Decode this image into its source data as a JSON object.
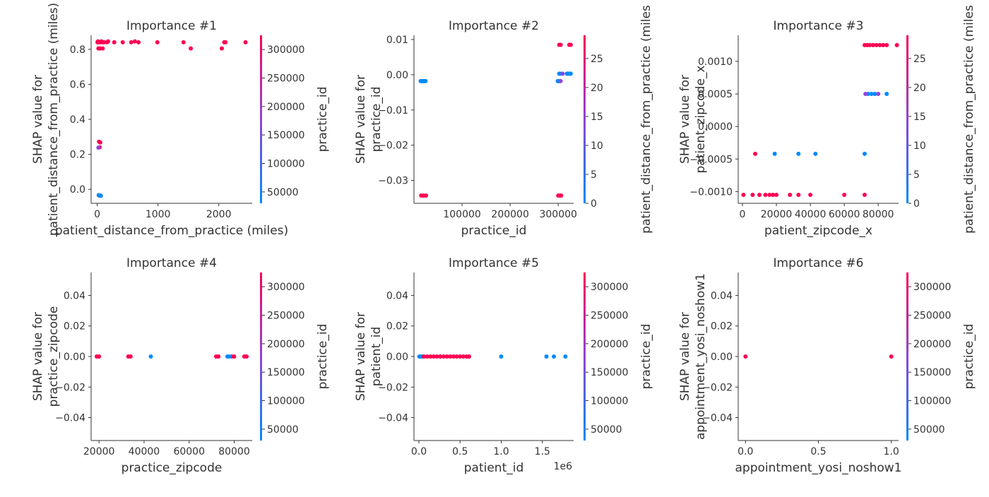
{
  "colors": {
    "low": "#008bfb",
    "mid": "#9145d7",
    "high": "#ff0052",
    "axis": "#333333"
  },
  "chart_data": [
    {
      "type": "scatter",
      "title": "Importance #1",
      "xlabel": "patient_distance_from_practice (miles)",
      "ylabel": [
        "SHAP value for",
        "patient_distance_from_practice (miles)"
      ],
      "xlim": [
        -100,
        2550
      ],
      "ylim": [
        -0.08,
        0.88
      ],
      "xticks": [
        0,
        1000,
        2000
      ],
      "xtick_labels": [
        "0",
        "1000",
        "2000"
      ],
      "yticks": [
        0.0,
        0.2,
        0.4,
        0.6,
        0.8
      ],
      "ytick_labels": [
        "0.0",
        "0.2",
        "0.4",
        "0.6",
        "0.8"
      ],
      "colorbar": {
        "label": "practice_id",
        "range": [
          30000,
          325000
        ],
        "ticks": [
          50000,
          100000,
          150000,
          200000,
          250000,
          300000
        ],
        "tick_labels": [
          "50000",
          "100000",
          "150000",
          "200000",
          "250000",
          "300000"
        ]
      },
      "series": [
        {
          "color": "high",
          "points": [
            [
              5,
              0.84
            ],
            [
              12,
              0.845
            ],
            [
              20,
              0.84
            ],
            [
              35,
              0.84
            ],
            [
              50,
              0.84
            ],
            [
              70,
              0.845
            ],
            [
              90,
              0.84
            ],
            [
              110,
              0.84
            ],
            [
              160,
              0.84
            ],
            [
              180,
              0.845
            ],
            [
              280,
              0.84
            ],
            [
              420,
              0.84
            ],
            [
              560,
              0.84
            ],
            [
              620,
              0.845
            ],
            [
              680,
              0.84
            ],
            [
              990,
              0.84
            ],
            [
              1420,
              0.84
            ],
            [
              2090,
              0.84
            ],
            [
              2110,
              0.84
            ],
            [
              2440,
              0.84
            ],
            [
              20,
              0.805
            ],
            [
              45,
              0.805
            ],
            [
              90,
              0.805
            ],
            [
              1540,
              0.805
            ],
            [
              2050,
              0.805
            ],
            [
              30,
              0.272
            ],
            [
              50,
              0.268
            ],
            [
              40,
              0.24
            ],
            [
              30,
              -0.035
            ],
            [
              50,
              -0.035
            ]
          ]
        },
        {
          "color": "mid",
          "points": [
            [
              20,
              0.238
            ]
          ]
        },
        {
          "color": "low",
          "points": [
            [
              25,
              -0.033
            ],
            [
              45,
              -0.035
            ],
            [
              60,
              -0.037
            ]
          ]
        }
      ]
    },
    {
      "type": "scatter",
      "title": "Importance #2",
      "xlabel": "practice_id",
      "ylabel": [
        "SHAP value for",
        "practice_id"
      ],
      "xlim": [
        0,
        332000
      ],
      "ylim": [
        -0.0365,
        0.0112
      ],
      "xticks": [
        100000,
        200000,
        300000
      ],
      "xtick_labels": [
        "100000",
        "200000",
        "300000"
      ],
      "yticks": [
        0.01,
        0.0,
        -0.01,
        -0.02,
        -0.03
      ],
      "ytick_labels": [
        "0.01",
        "0.00",
        "−0.01",
        "−0.02",
        "−0.03"
      ],
      "colorbar": {
        "label": "patient_distance_from_practice (miles",
        "range": [
          0,
          29
        ],
        "ticks": [
          0,
          5,
          10,
          15,
          20,
          25
        ],
        "tick_labels": [
          "0",
          "5",
          "10",
          "15",
          "20",
          "25"
        ]
      },
      "series": [
        {
          "color": "low",
          "points": [
            [
              14000,
              -0.0018
            ],
            [
              16000,
              -0.0018
            ],
            [
              18000,
              -0.0018
            ],
            [
              20000,
              -0.0018
            ],
            [
              22000,
              -0.0018
            ],
            [
              24000,
              -0.0018
            ],
            [
              299000,
              -0.0018
            ],
            [
              301000,
              -0.0018
            ],
            [
              303000,
              -0.0018
            ],
            [
              302000,
              0.0003
            ],
            [
              304000,
              0.0003
            ],
            [
              318000,
              0.0003
            ],
            [
              320000,
              0.0003
            ],
            [
              322000,
              0.0003
            ],
            [
              324000,
              0.0003
            ],
            [
              326000,
              0.0003
            ]
          ]
        },
        {
          "color": "mid",
          "points": [
            [
              305000,
              -0.0018
            ],
            [
              309000,
              0.0003
            ]
          ]
        },
        {
          "color": "high",
          "points": [
            [
              15000,
              -0.0343
            ],
            [
              20000,
              -0.0343
            ],
            [
              25000,
              -0.0343
            ],
            [
              300000,
              -0.0343
            ],
            [
              303000,
              -0.0343
            ],
            [
              306000,
              -0.0343
            ],
            [
              302000,
              0.0085
            ],
            [
              305000,
              0.0085
            ],
            [
              323000,
              0.0085
            ],
            [
              326000,
              0.0085
            ]
          ]
        }
      ]
    },
    {
      "type": "scatter",
      "title": "Importance #3",
      "xlabel": "patient_zipcode_x",
      "ylabel": [
        "SHAP value for",
        "patient_zipcode_x"
      ],
      "xlim": [
        -2500,
        92000
      ],
      "ylim": [
        -0.00118,
        0.0014
      ],
      "xticks": [
        0,
        20000,
        40000,
        60000,
        80000
      ],
      "xtick_labels": [
        "0",
        "20000",
        "40000",
        "60000",
        "80000"
      ],
      "yticks": [
        0.001,
        0.0005,
        0.0,
        -0.0005,
        -0.001
      ],
      "ytick_labels": [
        "0.0010",
        "0.0005",
        "0.0000",
        "−0.0005",
        "−0.0010"
      ],
      "colorbar": {
        "label": "patient_distance_from_practice (miles",
        "range": [
          0,
          29
        ],
        "ticks": [
          0,
          5,
          10,
          15,
          20,
          25
        ],
        "tick_labels": [
          "0",
          "5",
          "10",
          "15",
          "20",
          "25"
        ]
      },
      "series": [
        {
          "color": "high",
          "points": [
            [
              600,
              -0.00105
            ],
            [
              6000,
              -0.00105
            ],
            [
              10000,
              -0.00105
            ],
            [
              13500,
              -0.00105
            ],
            [
              16000,
              -0.00105
            ],
            [
              18000,
              -0.00105
            ],
            [
              20000,
              -0.00105
            ],
            [
              28000,
              -0.00105
            ],
            [
              33000,
              -0.00105
            ],
            [
              40000,
              -0.00105
            ],
            [
              60000,
              -0.00105
            ],
            [
              72000,
              -0.00105
            ],
            [
              7500,
              -0.00042
            ],
            [
              72000,
              0.00125
            ],
            [
              73500,
              0.00125
            ],
            [
              75000,
              0.00125
            ],
            [
              77000,
              0.00125
            ],
            [
              79000,
              0.00125
            ],
            [
              81000,
              0.00125
            ],
            [
              83000,
              0.00125
            ],
            [
              85000,
              0.00125
            ],
            [
              91000,
              0.00125
            ]
          ]
        },
        {
          "color": "low",
          "points": [
            [
              19000,
              -0.00042
            ],
            [
              33000,
              -0.00042
            ],
            [
              43000,
              -0.00042
            ],
            [
              72000,
              -0.00042
            ],
            [
              74000,
              0.0005
            ],
            [
              76000,
              0.0005
            ],
            [
              78000,
              0.0005
            ],
            [
              85000,
              0.0005
            ]
          ]
        },
        {
          "color": "mid",
          "points": [
            [
              72500,
              0.0005
            ],
            [
              80000,
              0.0005
            ]
          ]
        }
      ]
    },
    {
      "type": "scatter",
      "title": "Importance #4",
      "xlabel": "practice_zipcode",
      "ylabel": [
        "SHAP value for",
        "practice_zipcode"
      ],
      "xlim": [
        16500,
        88000
      ],
      "ylim": [
        -0.055,
        0.055
      ],
      "xticks": [
        20000,
        40000,
        60000,
        80000
      ],
      "xtick_labels": [
        "20000",
        "40000",
        "60000",
        "80000"
      ],
      "yticks": [
        0.04,
        0.02,
        0.0,
        -0.02,
        -0.04
      ],
      "ytick_labels": [
        "0.04",
        "0.02",
        "0.00",
        "−0.02",
        "−0.04"
      ],
      "colorbar": {
        "label": "practice_id",
        "range": [
          30000,
          325000
        ],
        "ticks": [
          50000,
          100000,
          150000,
          200000,
          250000,
          300000
        ],
        "tick_labels": [
          "50000",
          "100000",
          "150000",
          "200000",
          "250000",
          "300000"
        ]
      },
      "series": [
        {
          "color": "high",
          "points": [
            [
              19000,
              0.0
            ],
            [
              20000,
              0.0
            ],
            [
              33000,
              0.0
            ],
            [
              34000,
              0.0
            ],
            [
              72000,
              0.0
            ],
            [
              73000,
              0.0
            ],
            [
              79000,
              0.0
            ],
            [
              80000,
              0.0
            ],
            [
              84500,
              0.0
            ],
            [
              85500,
              0.0
            ]
          ]
        },
        {
          "color": "low",
          "points": [
            [
              43000,
              0.0
            ],
            [
              77000,
              0.0
            ],
            [
              78000,
              0.0
            ]
          ]
        }
      ]
    },
    {
      "type": "scatter",
      "title": "Importance #5",
      "xlabel": "patient_id",
      "x_offset_label": "1e6",
      "ylabel": [
        "SHAP value for",
        "patient_id"
      ],
      "xlim": [
        -60000,
        1880000
      ],
      "ylim": [
        -0.055,
        0.055
      ],
      "xticks": [
        0,
        500000,
        1000000,
        1500000
      ],
      "xtick_labels": [
        "0.0",
        "0.5",
        "1.0",
        "1.5"
      ],
      "yticks": [
        0.04,
        0.02,
        0.0,
        -0.02,
        -0.04
      ],
      "ytick_labels": [
        "0.04",
        "0.02",
        "0.00",
        "−0.02",
        "−0.04"
      ],
      "colorbar": {
        "label": "practice_id",
        "range": [
          30000,
          325000
        ],
        "ticks": [
          50000,
          100000,
          150000,
          200000,
          250000,
          300000
        ],
        "tick_labels": [
          "50000",
          "100000",
          "150000",
          "200000",
          "250000",
          "300000"
        ]
      },
      "series": [
        {
          "color": "low",
          "points": [
            [
              5000,
              0.0
            ],
            [
              20000,
              0.0
            ],
            [
              40000,
              0.0
            ],
            [
              1000000,
              0.0
            ],
            [
              1550000,
              0.0
            ],
            [
              1640000,
              0.0
            ],
            [
              1780000,
              0.0
            ]
          ]
        },
        {
          "color": "high",
          "points": [
            [
              60000,
              0.0
            ],
            [
              100000,
              0.0
            ],
            [
              140000,
              0.0
            ],
            [
              180000,
              0.0
            ],
            [
              220000,
              0.0
            ],
            [
              260000,
              0.0
            ],
            [
              300000,
              0.0
            ],
            [
              340000,
              0.0
            ],
            [
              380000,
              0.0
            ],
            [
              420000,
              0.0
            ],
            [
              460000,
              0.0
            ],
            [
              500000,
              0.0
            ],
            [
              540000,
              0.0
            ],
            [
              580000,
              0.0
            ],
            [
              610000,
              0.0
            ]
          ]
        }
      ]
    },
    {
      "type": "scatter",
      "title": "Importance #6",
      "xlabel": "appointment_yosi_noshow1",
      "ylabel": [
        "SHAP value for",
        "appointment_yosi_noshow1"
      ],
      "xlim": [
        -0.05,
        1.05
      ],
      "ylim": [
        -0.055,
        0.055
      ],
      "xticks": [
        0.0,
        0.5,
        1.0
      ],
      "xtick_labels": [
        "0.0",
        "0.5",
        "1.0"
      ],
      "yticks": [
        0.04,
        0.02,
        0.0,
        -0.02,
        -0.04
      ],
      "ytick_labels": [
        "0.04",
        "0.02",
        "0.00",
        "−0.02",
        "−0.04"
      ],
      "colorbar": {
        "label": "practice_id",
        "range": [
          30000,
          325000
        ],
        "ticks": [
          50000,
          100000,
          150000,
          200000,
          250000,
          300000
        ],
        "tick_labels": [
          "50000",
          "100000",
          "150000",
          "200000",
          "250000",
          "300000"
        ]
      },
      "series": [
        {
          "color": "high",
          "points": [
            [
              0.0,
              0.0
            ],
            [
              1.0,
              0.0
            ]
          ]
        }
      ]
    }
  ]
}
